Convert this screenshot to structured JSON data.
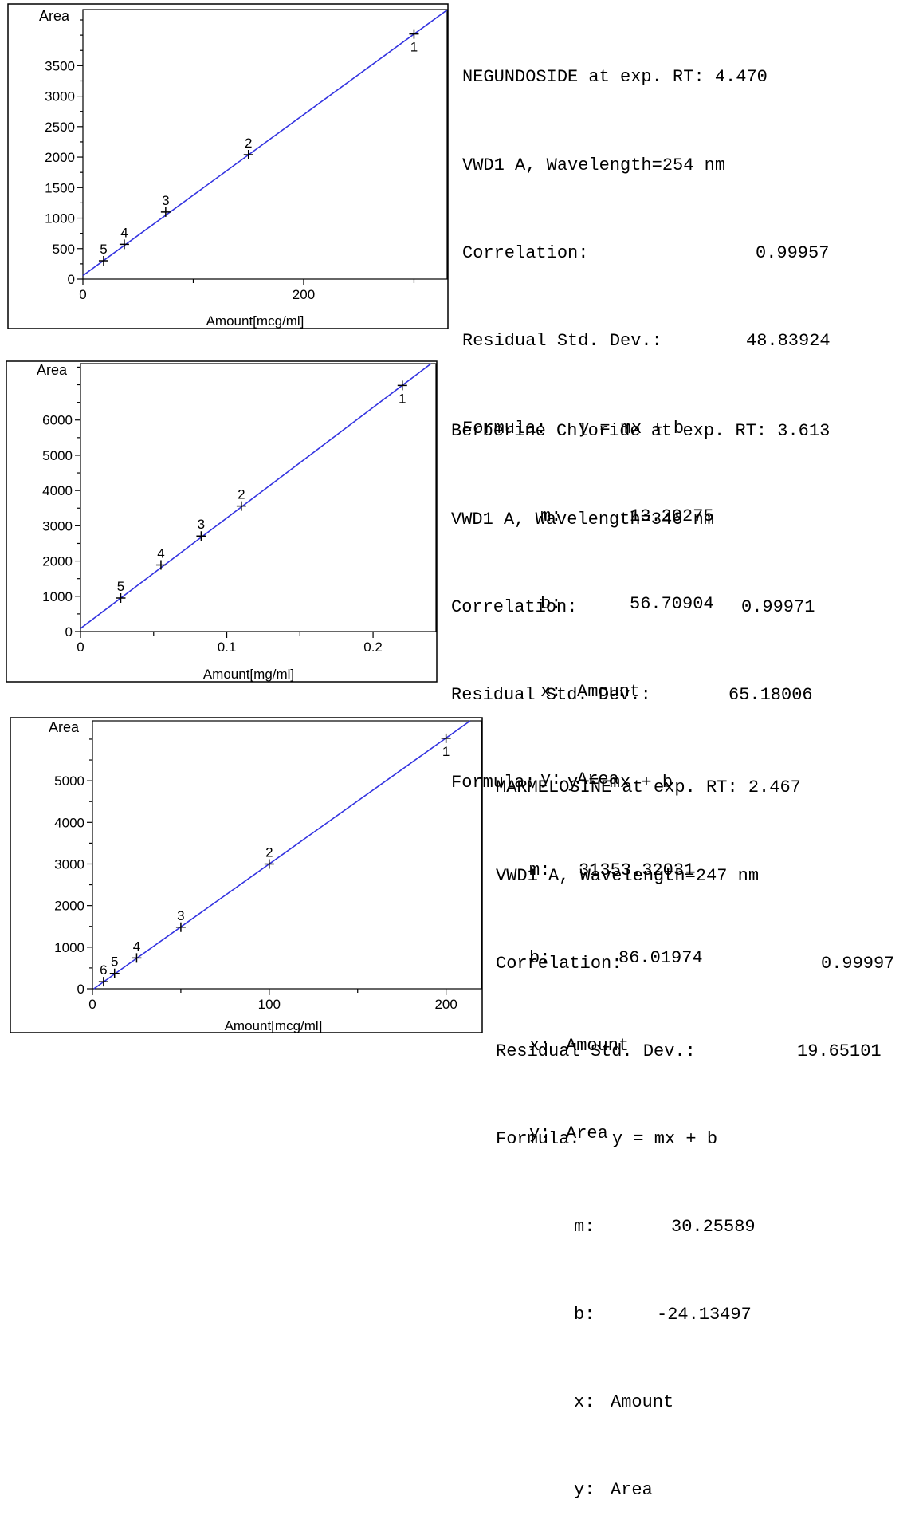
{
  "chart_data": [
    {
      "type": "scatter",
      "xlabel": "Amount[mcg/ml]",
      "ylabel": "Area",
      "xlim": [
        0,
        330
      ],
      "ylim": [
        0,
        4420
      ],
      "x_ticks": [
        0,
        200
      ],
      "y_ticks": [
        0,
        500,
        1000,
        1500,
        2000,
        2500,
        3000,
        3500
      ],
      "points": [
        {
          "label": "1",
          "x": 300,
          "y": 4020
        },
        {
          "label": "2",
          "x": 150,
          "y": 2040
        },
        {
          "label": "3",
          "x": 75,
          "y": 1100
        },
        {
          "label": "4",
          "x": 37.5,
          "y": 570
        },
        {
          "label": "5",
          "x": 18.75,
          "y": 300
        }
      ],
      "fit": {
        "m": 13.20275,
        "b": 56.70904
      },
      "line_color": "#3333e0",
      "info": {
        "title": "NEGUNDOSIDE at exp. RT: 4.470",
        "detector": "VWD1 A, Wavelength=254 nm",
        "correlation_label": "Correlation:",
        "correlation": "0.99957",
        "rsd_label": "Residual Std. Dev.:",
        "rsd": "48.83924",
        "formula_label": "Formula:",
        "formula": "y = mx + b",
        "m_label": "m:",
        "m": "13.20275",
        "b_label": "b:",
        "b": "56.70904",
        "x_label": "x:",
        "x": "Amount",
        "y_label": "y:",
        "y": "Area"
      }
    },
    {
      "type": "scatter",
      "xlabel": "Amount[mg/ml]",
      "ylabel": "Area",
      "xlim": [
        0,
        0.243
      ],
      "ylim": [
        0,
        7600
      ],
      "x_ticks": [
        0,
        0.1,
        0.2
      ],
      "y_ticks": [
        0,
        1000,
        2000,
        3000,
        4000,
        5000,
        6000
      ],
      "points": [
        {
          "label": "1",
          "x": 0.22,
          "y": 6980
        },
        {
          "label": "2",
          "x": 0.11,
          "y": 3560
        },
        {
          "label": "3",
          "x": 0.0825,
          "y": 2710
        },
        {
          "label": "4",
          "x": 0.055,
          "y": 1890
        },
        {
          "label": "5",
          "x": 0.0275,
          "y": 950
        }
      ],
      "fit": {
        "m": 31353.32031,
        "b": 86.01974
      },
      "line_color": "#3333e0",
      "info": {
        "title": "Berberine Chloride at exp. RT: 3.613",
        "detector": "VWD1 A, Wavelength=346 nm",
        "correlation_label": "Correlation:",
        "correlation": "0.99971",
        "rsd_label": "Residual Std. Dev.:",
        "rsd": "65.18006",
        "formula_label": "Formula:",
        "formula": "y = mx + b",
        "m_label": "m:",
        "m": "31353.32031",
        "b_label": "b:",
        "b": "86.01974",
        "x_label": "x:",
        "x": "Amount",
        "y_label": "y:",
        "y": "Area"
      }
    },
    {
      "type": "scatter",
      "xlabel": "Amount[mcg/ml]",
      "ylabel": "Area",
      "xlim": [
        0,
        220
      ],
      "ylim": [
        0,
        6440
      ],
      "x_ticks": [
        0,
        100,
        200
      ],
      "y_ticks": [
        0,
        1000,
        2000,
        3000,
        4000,
        5000
      ],
      "points": [
        {
          "label": "1",
          "x": 200,
          "y": 6020
        },
        {
          "label": "2",
          "x": 100,
          "y": 3000
        },
        {
          "label": "3",
          "x": 50,
          "y": 1480
        },
        {
          "label": "4",
          "x": 25,
          "y": 740
        },
        {
          "label": "5",
          "x": 12.5,
          "y": 370
        },
        {
          "label": "6",
          "x": 6.25,
          "y": 170
        }
      ],
      "fit": {
        "m": 30.25589,
        "b": -24.13497
      },
      "line_color": "#3333e0",
      "info": {
        "title": "MARMELOSINE at exp. RT: 2.467",
        "detector": "VWD1 A, Wavelength=247 nm",
        "correlation_label": "Correlation:",
        "correlation": "0.99997",
        "rsd_label": "Residual Std. Dev.:",
        "rsd": "19.65101",
        "formula_label": "Formula:",
        "formula": "y = mx + b",
        "m_label": "m:",
        "m": "30.25589",
        "b_label": "b:",
        "b": "-24.13497",
        "x_label": "x:",
        "x": "Amount",
        "y_label": "y:",
        "y": "Area"
      }
    }
  ]
}
